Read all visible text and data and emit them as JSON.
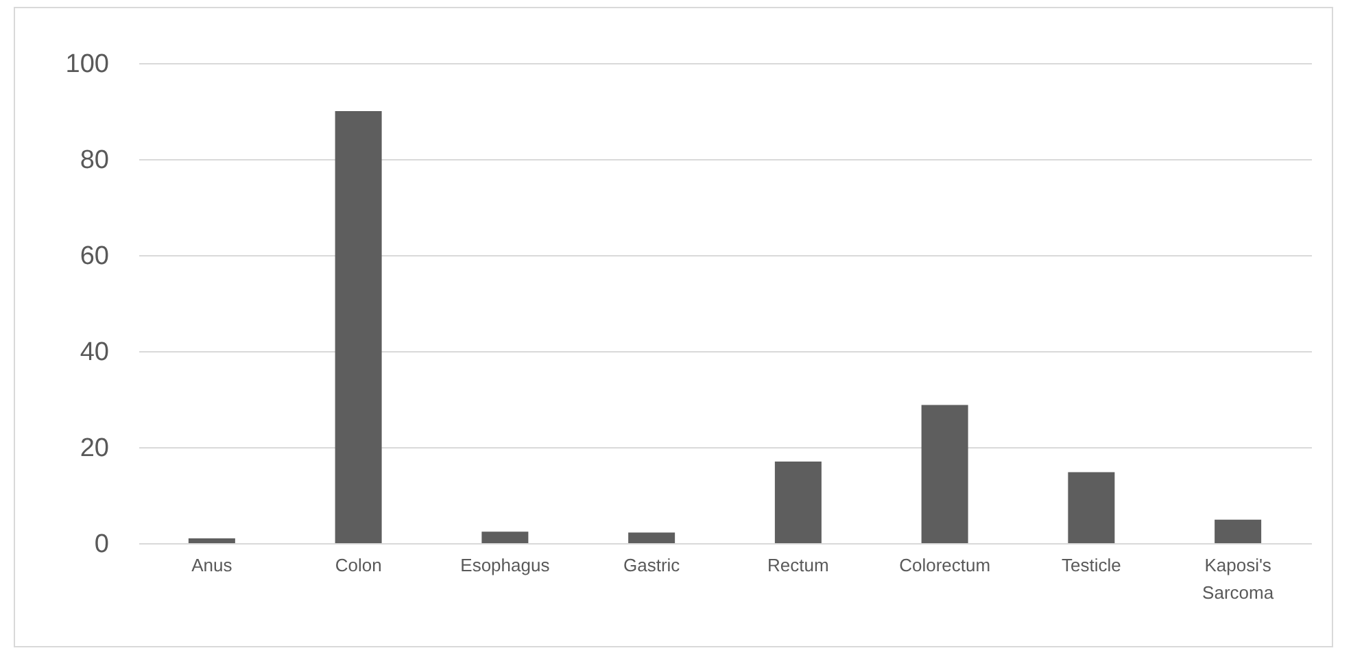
{
  "chart_data": {
    "type": "bar",
    "categories": [
      "Anus",
      "Colon",
      "Esophagus",
      "Gastric",
      "Rectum",
      "Colorectum",
      "Testicle",
      "Kaposi's Sarcoma"
    ],
    "values": [
      1,
      90,
      2.4,
      2.2,
      17,
      28.8,
      14.8,
      4.9
    ],
    "color": "#5e5e5e",
    "ylim": [
      0,
      100
    ],
    "yticks": [
      0,
      20,
      40,
      60,
      80,
      100
    ],
    "grid": "y"
  }
}
